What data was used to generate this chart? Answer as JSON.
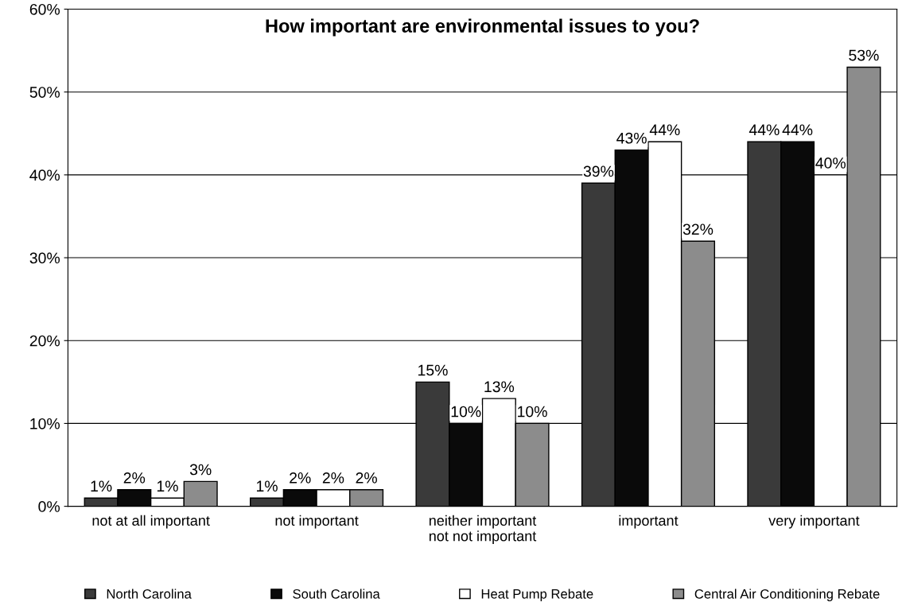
{
  "chart_data": {
    "type": "bar",
    "title": "How important are environmental issues to you?",
    "categories": [
      "not at all important",
      "not important",
      "neither important\nnot not important",
      "important",
      "very important"
    ],
    "series": [
      {
        "name": "North Carolina",
        "color": "#3a3a3a",
        "values": [
          1,
          1,
          15,
          39,
          44
        ],
        "value_labels": [
          "1%",
          "1%",
          "15%",
          "39%",
          "44%"
        ]
      },
      {
        "name": "South Carolina",
        "color": "#0a0a0a",
        "values": [
          2,
          2,
          10,
          43,
          44
        ],
        "value_labels": [
          "2%",
          "2%",
          "10%",
          "43%",
          "44%"
        ]
      },
      {
        "name": "Heat Pump Rebate",
        "color": "#ffffff",
        "values": [
          1,
          2,
          13,
          44,
          40
        ],
        "value_labels": [
          "1%",
          "2%",
          "13%",
          "44%",
          "40%"
        ]
      },
      {
        "name": "Central Air Conditioning Rebate",
        "color": "#8c8c8c",
        "values": [
          3,
          2,
          10,
          32,
          53
        ],
        "value_labels": [
          "3%",
          "2%",
          "10%",
          "32%",
          "53%"
        ]
      }
    ],
    "ylim": [
      0,
      60
    ],
    "yticks": [
      {
        "value": 0,
        "label": "0%"
      },
      {
        "value": 10,
        "label": "10%"
      },
      {
        "value": 20,
        "label": "20%"
      },
      {
        "value": 30,
        "label": "30%"
      },
      {
        "value": 40,
        "label": "40%"
      },
      {
        "value": 50,
        "label": "50%"
      },
      {
        "value": 60,
        "label": "60%"
      }
    ],
    "grid": "y",
    "legend": "bottom"
  }
}
